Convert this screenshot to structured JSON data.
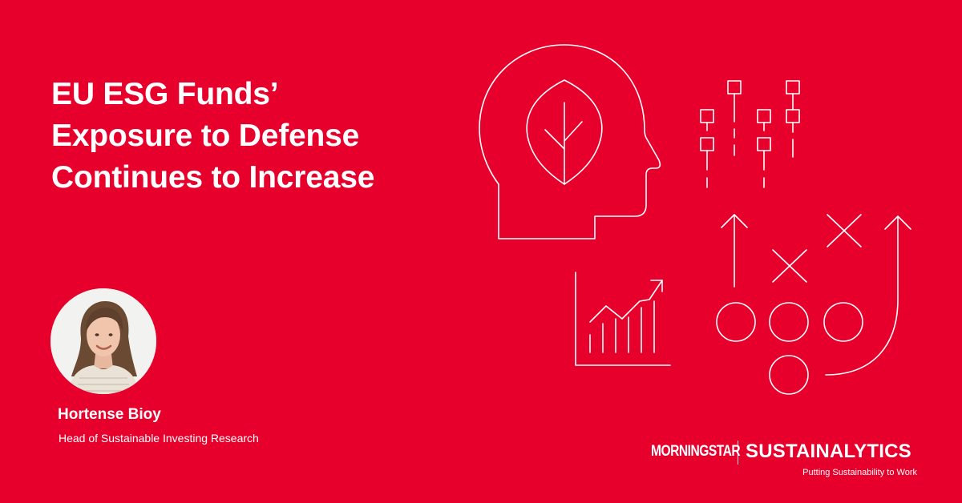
{
  "theme": {
    "background_color": "#E6002B",
    "text_color": "#FFFFFF",
    "line_color": "#FFFFFF"
  },
  "headline": {
    "lines": [
      "EU ESG Funds’",
      "Exposure to Defense",
      "Continues to Increase"
    ]
  },
  "author": {
    "name": "Hortense Bioy",
    "title": "Head of Sustainable Investing Research",
    "avatar_icon": "person-photo"
  },
  "illustration": {
    "icons": [
      "head-with-leaf-icon",
      "node-grid-icon",
      "rising-bar-chart-icon",
      "strategy-playbook-icon"
    ]
  },
  "brand": {
    "morningstar_logo": "MORNINGSTAR",
    "sustainalytics_logo": "SUSTAINALYTICS",
    "tagline": "Putting Sustainability to Work"
  }
}
